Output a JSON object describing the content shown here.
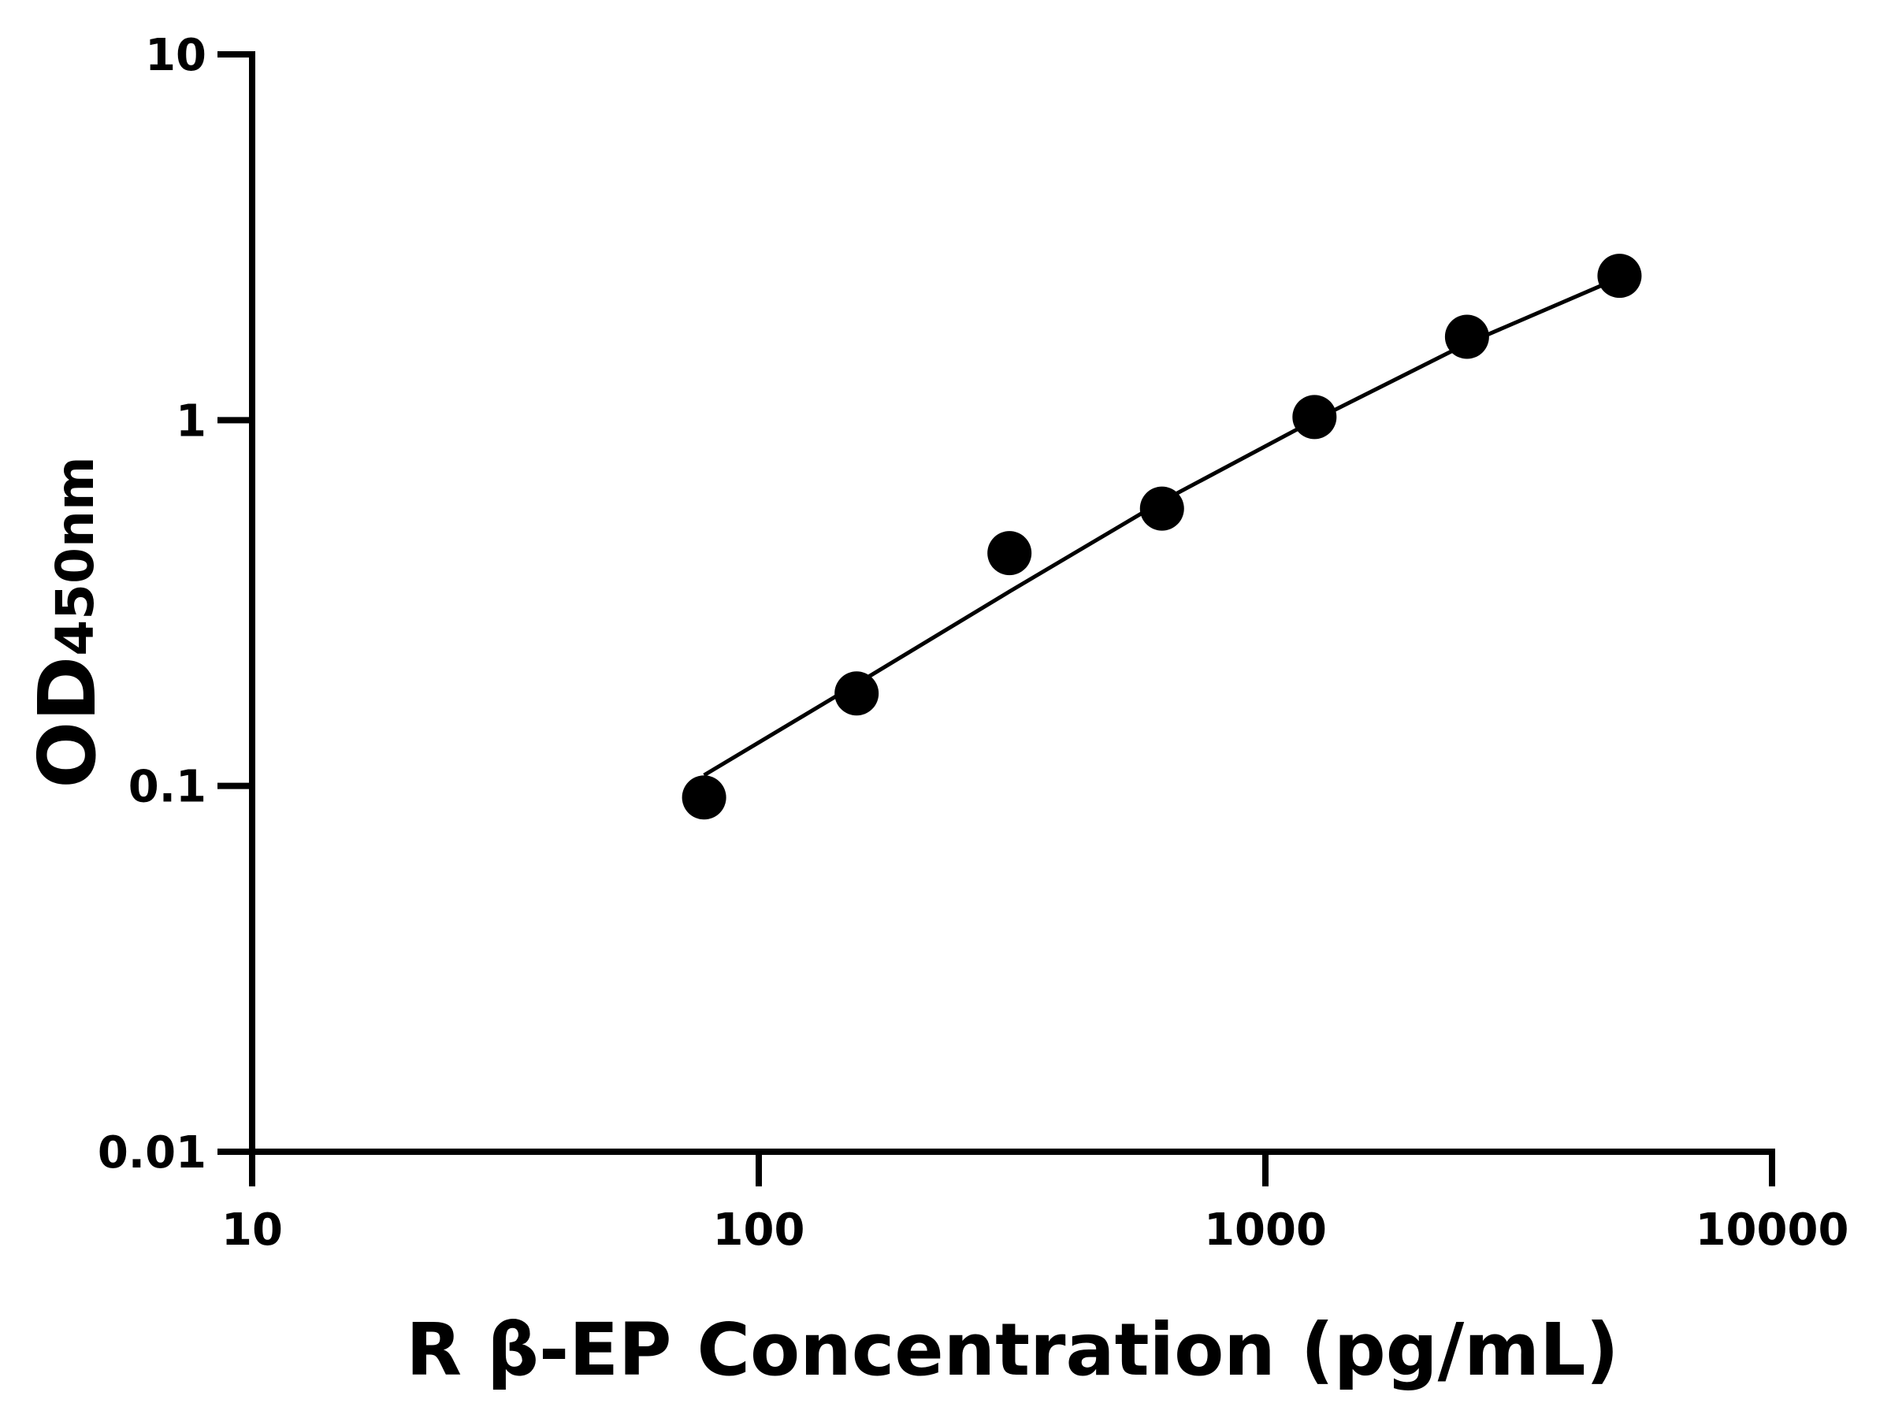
{
  "chart_data": {
    "type": "scatter",
    "xlabel": "R β-EP Concentration (pg/mL)",
    "ylabel_main": "OD",
    "ylabel_sub": "450nm",
    "xscale": "log",
    "yscale": "log",
    "xlim": [
      10,
      10000
    ],
    "ylim": [
      0.01,
      10
    ],
    "xticks": [
      "10",
      "100",
      "1000",
      "10000"
    ],
    "yticks": [
      "0.01",
      "0.1",
      "1",
      "10"
    ],
    "grid": false,
    "points": [
      {
        "x": 78,
        "y": 0.093
      },
      {
        "x": 156,
        "y": 0.179
      },
      {
        "x": 312.5,
        "y": 0.433
      },
      {
        "x": 625,
        "y": 0.573
      },
      {
        "x": 1250,
        "y": 1.02
      },
      {
        "x": 2500,
        "y": 1.69
      },
      {
        "x": 5000,
        "y": 2.48
      }
    ],
    "fit_curve": [
      {
        "x": 78,
        "y": 0.107
      },
      {
        "x": 156,
        "y": 0.19
      },
      {
        "x": 312.5,
        "y": 0.34
      },
      {
        "x": 625,
        "y": 0.6
      },
      {
        "x": 1250,
        "y": 1.0
      },
      {
        "x": 2500,
        "y": 1.62
      },
      {
        "x": 5000,
        "y": 2.45
      }
    ],
    "colors": {
      "points": "#000000",
      "line": "#000000"
    }
  }
}
